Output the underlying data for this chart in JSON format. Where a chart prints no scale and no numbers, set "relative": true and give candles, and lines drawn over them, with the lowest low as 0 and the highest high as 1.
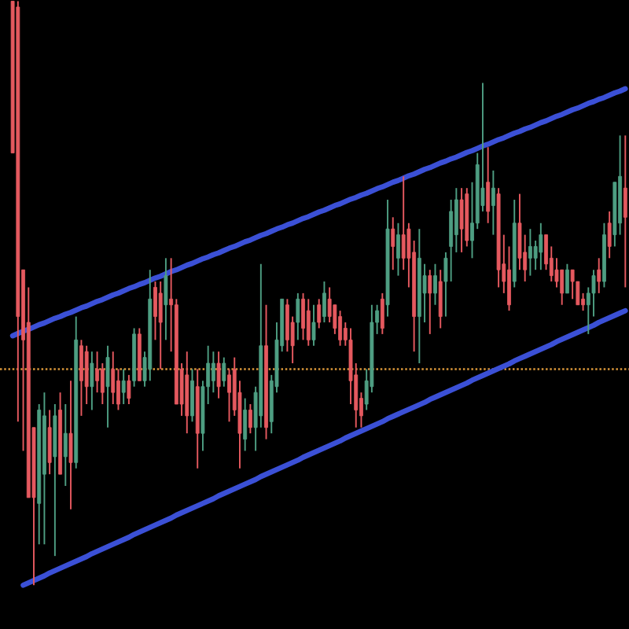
{
  "chart_data": {
    "type": "candlestick",
    "relative": true,
    "categories": [
      null,
      null,
      null,
      null,
      null,
      null,
      null,
      null,
      null,
      null,
      null,
      null,
      null,
      null,
      null,
      null,
      null,
      null,
      null,
      null,
      null,
      null,
      null,
      null,
      null,
      null,
      null,
      null,
      null,
      null,
      null,
      null,
      null,
      null,
      null,
      null,
      null,
      null,
      null,
      null,
      null,
      null,
      null,
      null,
      null,
      null,
      null,
      null,
      null,
      null,
      null,
      null,
      null,
      null,
      null,
      null,
      null,
      null,
      null,
      null,
      null,
      null,
      null,
      null,
      null,
      null,
      null,
      null,
      null,
      null,
      null,
      null,
      null,
      null,
      null,
      null,
      null,
      null,
      null,
      null,
      null,
      null,
      null,
      null,
      null,
      null,
      null,
      null,
      null,
      null,
      null,
      null,
      null,
      null,
      null,
      null,
      null,
      null,
      null,
      null,
      null,
      null,
      null,
      null,
      null,
      null,
      null,
      null,
      null,
      null,
      null,
      null,
      null,
      null,
      null,
      null,
      null
    ],
    "ohlc": [
      [
        1.0,
        1.0,
        0.74,
        0.74
      ],
      [
        0.99,
        1.0,
        0.28,
        0.46
      ],
      [
        0.54,
        0.54,
        0.23,
        0.42
      ],
      [
        0.45,
        0.51,
        0.15,
        0.15
      ],
      [
        0.27,
        0.27,
        0.0,
        0.15
      ],
      [
        0.14,
        0.31,
        0.07,
        0.3
      ],
      [
        0.19,
        0.33,
        0.07,
        0.29
      ],
      [
        0.27,
        0.3,
        0.19,
        0.21
      ],
      [
        0.22,
        0.31,
        0.05,
        0.29
      ],
      [
        0.3,
        0.33,
        0.19,
        0.19
      ],
      [
        0.22,
        0.31,
        0.17,
        0.26
      ],
      [
        0.26,
        0.35,
        0.13,
        0.21
      ],
      [
        0.21,
        0.46,
        0.2,
        0.42
      ],
      [
        0.41,
        0.42,
        0.29,
        0.35
      ],
      [
        0.4,
        0.41,
        0.31,
        0.34
      ],
      [
        0.34,
        0.4,
        0.3,
        0.38
      ],
      [
        0.37,
        0.4,
        0.33,
        0.35
      ],
      [
        0.37,
        0.38,
        0.31,
        0.33
      ],
      [
        0.34,
        0.41,
        0.27,
        0.39
      ],
      [
        0.37,
        0.4,
        0.31,
        0.33
      ],
      [
        0.35,
        0.37,
        0.3,
        0.31
      ],
      [
        0.33,
        0.37,
        0.31,
        0.35
      ],
      [
        0.35,
        0.36,
        0.31,
        0.32
      ],
      [
        0.35,
        0.44,
        0.34,
        0.43
      ],
      [
        0.43,
        0.44,
        0.35,
        0.35
      ],
      [
        0.35,
        0.4,
        0.34,
        0.39
      ],
      [
        0.37,
        0.54,
        0.35,
        0.49
      ],
      [
        0.51,
        0.52,
        0.42,
        0.46
      ],
      [
        0.5,
        0.52,
        0.37,
        0.45
      ],
      [
        0.48,
        0.56,
        0.42,
        0.53
      ],
      [
        0.49,
        0.56,
        0.4,
        0.48
      ],
      [
        0.48,
        0.49,
        0.31,
        0.31
      ],
      [
        0.37,
        0.38,
        0.29,
        0.31
      ],
      [
        0.36,
        0.4,
        0.26,
        0.29
      ],
      [
        0.29,
        0.37,
        0.28,
        0.35
      ],
      [
        0.34,
        0.37,
        0.2,
        0.26
      ],
      [
        0.26,
        0.35,
        0.23,
        0.34
      ],
      [
        0.34,
        0.41,
        0.31,
        0.38
      ],
      [
        0.35,
        0.4,
        0.33,
        0.38
      ],
      [
        0.38,
        0.4,
        0.32,
        0.34
      ],
      [
        0.35,
        0.39,
        0.34,
        0.38
      ],
      [
        0.36,
        0.37,
        0.28,
        0.33
      ],
      [
        0.37,
        0.39,
        0.29,
        0.3
      ],
      [
        0.33,
        0.35,
        0.2,
        0.26
      ],
      [
        0.25,
        0.32,
        0.23,
        0.3
      ],
      [
        0.3,
        0.31,
        0.26,
        0.27
      ],
      [
        0.27,
        0.34,
        0.23,
        0.33
      ],
      [
        0.29,
        0.55,
        0.27,
        0.41
      ],
      [
        0.41,
        0.48,
        0.25,
        0.27
      ],
      [
        0.28,
        0.36,
        0.26,
        0.35
      ],
      [
        0.34,
        0.45,
        0.33,
        0.42
      ],
      [
        0.41,
        0.49,
        0.4,
        0.49
      ],
      [
        0.48,
        0.49,
        0.4,
        0.42
      ],
      [
        0.45,
        0.46,
        0.38,
        0.41
      ],
      [
        0.45,
        0.5,
        0.42,
        0.49
      ],
      [
        0.49,
        0.5,
        0.42,
        0.44
      ],
      [
        0.47,
        0.49,
        0.41,
        0.42
      ],
      [
        0.42,
        0.48,
        0.41,
        0.45
      ],
      [
        0.48,
        0.49,
        0.44,
        0.45
      ],
      [
        0.46,
        0.52,
        0.45,
        0.5
      ],
      [
        0.49,
        0.51,
        0.45,
        0.46
      ],
      [
        0.48,
        0.48,
        0.43,
        0.44
      ],
      [
        0.46,
        0.47,
        0.41,
        0.42
      ],
      [
        0.44,
        0.45,
        0.41,
        0.42
      ],
      [
        0.42,
        0.44,
        0.31,
        0.35
      ],
      [
        0.36,
        0.38,
        0.27,
        0.3
      ],
      [
        0.32,
        0.33,
        0.27,
        0.29
      ],
      [
        0.31,
        0.37,
        0.3,
        0.35
      ],
      [
        0.34,
        0.48,
        0.33,
        0.45
      ],
      [
        0.45,
        0.48,
        0.43,
        0.47
      ],
      [
        0.49,
        0.5,
        0.43,
        0.44
      ],
      [
        0.48,
        0.66,
        0.46,
        0.61
      ],
      [
        0.61,
        0.63,
        0.54,
        0.58
      ],
      [
        0.56,
        0.62,
        0.53,
        0.6
      ],
      [
        0.6,
        0.7,
        0.54,
        0.56
      ],
      [
        0.61,
        0.62,
        0.51,
        0.56
      ],
      [
        0.57,
        0.59,
        0.4,
        0.46
      ],
      [
        0.46,
        0.61,
        0.38,
        0.56
      ],
      [
        0.5,
        0.55,
        0.45,
        0.53
      ],
      [
        0.53,
        0.54,
        0.43,
        0.5
      ],
      [
        0.5,
        0.55,
        0.48,
        0.53
      ],
      [
        0.52,
        0.54,
        0.44,
        0.46
      ],
      [
        0.52,
        0.57,
        0.46,
        0.56
      ],
      [
        0.58,
        0.66,
        0.52,
        0.64
      ],
      [
        0.6,
        0.68,
        0.57,
        0.66
      ],
      [
        0.66,
        0.68,
        0.57,
        0.61
      ],
      [
        0.67,
        0.68,
        0.58,
        0.59
      ],
      [
        0.59,
        0.69,
        0.56,
        0.62
      ],
      [
        0.62,
        0.74,
        0.61,
        0.72
      ],
      [
        0.65,
        0.86,
        0.64,
        0.68
      ],
      [
        0.69,
        0.75,
        0.62,
        0.64
      ],
      [
        0.65,
        0.71,
        0.6,
        0.68
      ],
      [
        0.67,
        0.68,
        0.51,
        0.54
      ],
      [
        0.55,
        0.6,
        0.5,
        0.52
      ],
      [
        0.54,
        0.58,
        0.47,
        0.48
      ],
      [
        0.52,
        0.66,
        0.51,
        0.62
      ],
      [
        0.62,
        0.67,
        0.54,
        0.56
      ],
      [
        0.57,
        0.6,
        0.52,
        0.54
      ],
      [
        0.56,
        0.61,
        0.53,
        0.58
      ],
      [
        0.56,
        0.59,
        0.54,
        0.58
      ],
      [
        0.57,
        0.62,
        0.54,
        0.6
      ],
      [
        0.6,
        0.6,
        0.54,
        0.55
      ],
      [
        0.56,
        0.58,
        0.52,
        0.53
      ],
      [
        0.54,
        0.56,
        0.51,
        0.52
      ],
      [
        0.54,
        0.54,
        0.48,
        0.5
      ],
      [
        0.5,
        0.55,
        0.5,
        0.54
      ],
      [
        0.54,
        0.54,
        0.49,
        0.52
      ],
      [
        0.52,
        0.52,
        0.48,
        0.48
      ],
      [
        0.49,
        0.5,
        0.47,
        0.48
      ],
      [
        0.48,
        0.51,
        0.43,
        0.5
      ],
      [
        0.5,
        0.54,
        0.46,
        0.53
      ],
      [
        0.54,
        0.56,
        0.5,
        0.52
      ],
      [
        0.52,
        0.62,
        0.51,
        0.6
      ],
      [
        0.62,
        0.64,
        0.56,
        0.58
      ],
      [
        0.6,
        0.69,
        0.58,
        0.69
      ],
      [
        0.62,
        0.77,
        0.6,
        0.7
      ],
      [
        0.68,
        0.77,
        0.51,
        0.63
      ]
    ],
    "colors": [
      "#e5595f",
      "#e5595f",
      "#e5595f",
      "#e5595f",
      "#e5595f",
      "#4e9e82",
      "#4e9e82",
      "#e5595f",
      "#4e9e82",
      "#e5595f",
      "#4e9e82",
      "#e5595f",
      "#4e9e82",
      "#e5595f",
      "#e5595f",
      "#4e9e82",
      "#e5595f",
      "#e5595f",
      "#4e9e82",
      "#e5595f",
      "#e5595f",
      "#4e9e82",
      "#e5595f",
      "#4e9e82",
      "#e5595f",
      "#4e9e82",
      "#4e9e82",
      "#e5595f",
      "#e5595f",
      "#4e9e82",
      "#e5595f",
      "#e5595f",
      "#e5595f",
      "#e5595f",
      "#4e9e82",
      "#e5595f",
      "#4e9e82",
      "#4e9e82",
      "#4e9e82",
      "#e5595f",
      "#4e9e82",
      "#e5595f",
      "#e5595f",
      "#e5595f",
      "#4e9e82",
      "#e5595f",
      "#4e9e82",
      "#4e9e82",
      "#e5595f",
      "#4e9e82",
      "#4e9e82",
      "#4e9e82",
      "#e5595f",
      "#e5595f",
      "#4e9e82",
      "#e5595f",
      "#e5595f",
      "#4e9e82",
      "#e5595f",
      "#4e9e82",
      "#e5595f",
      "#e5595f",
      "#e5595f",
      "#e5595f",
      "#e5595f",
      "#e5595f",
      "#e5595f",
      "#4e9e82",
      "#4e9e82",
      "#4e9e82",
      "#e5595f",
      "#4e9e82",
      "#e5595f",
      "#4e9e82",
      "#e5595f",
      "#e5595f",
      "#e5595f",
      "#4e9e82",
      "#4e9e82",
      "#e5595f",
      "#4e9e82",
      "#e5595f",
      "#4e9e82",
      "#4e9e82",
      "#4e9e82",
      "#e5595f",
      "#e5595f",
      "#4e9e82",
      "#4e9e82",
      "#4e9e82",
      "#e5595f",
      "#4e9e82",
      "#e5595f",
      "#e5595f",
      "#e5595f",
      "#4e9e82",
      "#e5595f",
      "#e5595f",
      "#4e9e82",
      "#4e9e82",
      "#4e9e82",
      "#e5595f",
      "#e5595f",
      "#e5595f",
      "#e5595f",
      "#4e9e82",
      "#e5595f",
      "#e5595f",
      "#e5595f",
      "#4e9e82",
      "#4e9e82",
      "#e5595f",
      "#4e9e82",
      "#e5595f",
      "#4e9e82",
      "#4e9e82",
      "#e5595f"
    ],
    "series": [
      {
        "type": "line",
        "color": "#3b50d6",
        "values": [
          0.427,
          0.431,
          0.435,
          0.438,
          0.442,
          0.446,
          0.449,
          0.453,
          0.457,
          0.46,
          0.464,
          0.467,
          0.471,
          0.475,
          0.478,
          0.482,
          0.486,
          0.489,
          0.493,
          0.497,
          0.5,
          0.504,
          0.508,
          0.511,
          0.515,
          0.518,
          0.522,
          0.526,
          0.529,
          0.533,
          0.537,
          0.54,
          0.544,
          0.548,
          0.551,
          0.555,
          0.559,
          0.562,
          0.566,
          0.569,
          0.573,
          0.577,
          0.58,
          0.584,
          0.588,
          0.591,
          0.595,
          0.599,
          0.602,
          0.606,
          0.61,
          0.613,
          0.617,
          0.62,
          0.624,
          0.628,
          0.631,
          0.635,
          0.639,
          0.642,
          0.646,
          0.65,
          0.653,
          0.657,
          0.661,
          0.664,
          0.668,
          0.671,
          0.675,
          0.679,
          0.682,
          0.686,
          0.69,
          0.693,
          0.697,
          0.701,
          0.704,
          0.708,
          0.712,
          0.715,
          0.719,
          0.723,
          0.726,
          0.73,
          0.733,
          0.737,
          0.741,
          0.744,
          0.748,
          0.752,
          0.755,
          0.759,
          0.763,
          0.766,
          0.77,
          0.774,
          0.777,
          0.781,
          0.784,
          0.788,
          0.792,
          0.795,
          0.799,
          0.803,
          0.806,
          0.81,
          0.814,
          0.817,
          0.821,
          0.825,
          0.828,
          0.832,
          0.835,
          0.839,
          0.843,
          0.846,
          0.85
        ]
      },
      {
        "type": "line",
        "color": "#3b50d6",
        "values": [
          null,
          null,
          0.0,
          0.004,
          0.008,
          0.012,
          0.016,
          0.021,
          0.025,
          0.029,
          0.033,
          0.037,
          0.041,
          0.045,
          0.049,
          0.054,
          0.058,
          0.062,
          0.066,
          0.07,
          0.074,
          0.078,
          0.082,
          0.087,
          0.091,
          0.095,
          0.099,
          0.103,
          0.107,
          0.111,
          0.115,
          0.12,
          0.124,
          0.128,
          0.132,
          0.136,
          0.14,
          0.144,
          0.148,
          0.153,
          0.157,
          0.161,
          0.165,
          0.169,
          0.173,
          0.177,
          0.181,
          0.186,
          0.19,
          0.194,
          0.198,
          0.202,
          0.206,
          0.21,
          0.214,
          0.219,
          0.223,
          0.227,
          0.231,
          0.235,
          0.239,
          0.243,
          0.247,
          0.252,
          0.256,
          0.26,
          0.264,
          0.268,
          0.272,
          0.276,
          0.28,
          0.285,
          0.289,
          0.293,
          0.297,
          0.301,
          0.305,
          0.309,
          0.313,
          0.318,
          0.322,
          0.326,
          0.33,
          0.334,
          0.338,
          0.342,
          0.346,
          0.351,
          0.355,
          0.359,
          0.363,
          0.367,
          0.371,
          0.375,
          0.379,
          0.384,
          0.388,
          0.392,
          0.396,
          0.4,
          0.404,
          0.408,
          0.412,
          0.417,
          0.421,
          0.425,
          0.429,
          0.433,
          0.437,
          0.441,
          0.445,
          0.45,
          0.454,
          0.458,
          0.462,
          0.466,
          0.47
        ]
      }
    ],
    "ref_lines": [
      {
        "axis": "y",
        "value": 0.37,
        "color": "#d9963a",
        "line_style": "dotted"
      }
    ]
  }
}
